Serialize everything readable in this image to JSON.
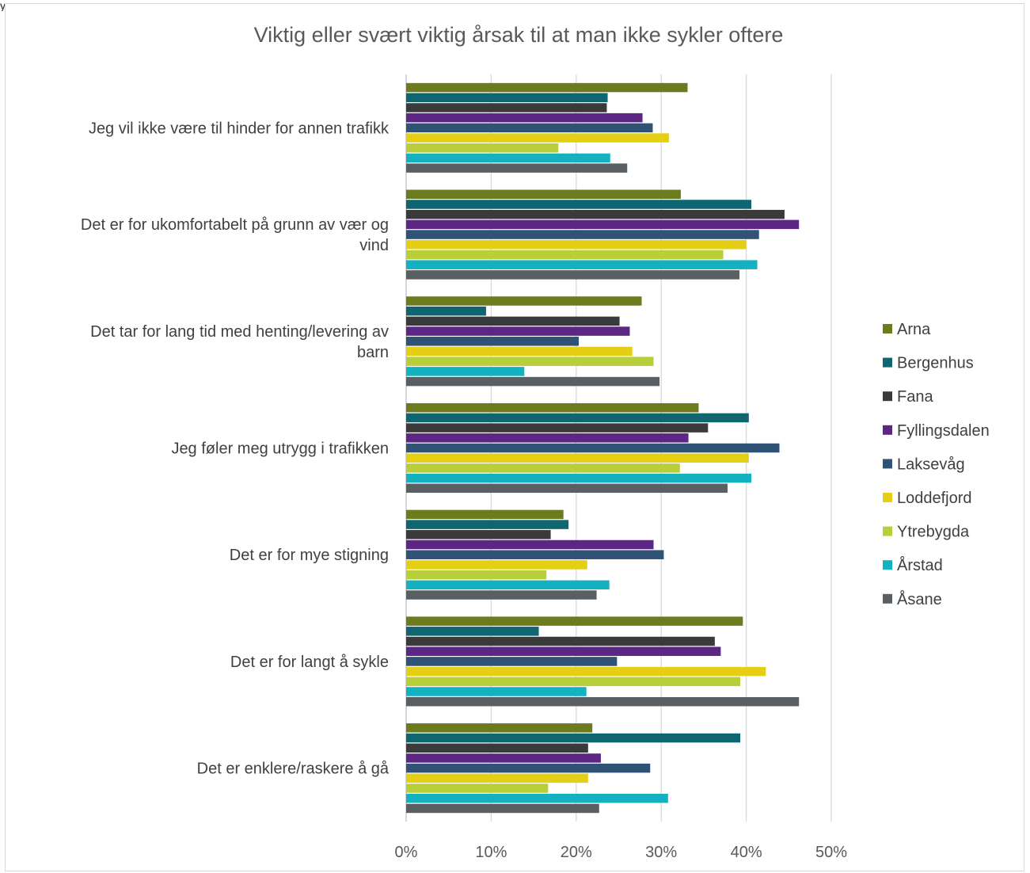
{
  "header_fragment": "y ... ... g ... g ... ... ... ... ... ... g ... y ... , y ...",
  "chart_data": {
    "type": "bar",
    "orientation": "horizontal",
    "title": "Viktig eller svært viktig årsak til at man ikke sykler oftere",
    "xlabel": "",
    "ylabel": "",
    "xlim": [
      0,
      0.5
    ],
    "x_ticks": [
      "0%",
      "10%",
      "20%",
      "30%",
      "40%",
      "50%"
    ],
    "grid": true,
    "legend_position": "right",
    "categories": [
      [
        "Jeg vil ikke være til hinder for annen trafikk"
      ],
      [
        "Det er for ukomfortabelt på grunn av vær og",
        "vind"
      ],
      [
        "Det tar for lang tid med henting/levering av",
        "barn"
      ],
      [
        "Jeg føler meg utrygg i trafikken"
      ],
      [
        "Det er for mye stigning"
      ],
      [
        "Det er for langt å sykle"
      ],
      [
        "Det er enklere/raskere å gå"
      ]
    ],
    "series": [
      {
        "name": "Arna",
        "color": "#6b7b1e",
        "values": [
          0.331,
          0.323,
          0.277,
          0.344,
          0.185,
          0.396,
          0.219
        ]
      },
      {
        "name": "Bergenhus",
        "color": "#0f6670",
        "values": [
          0.237,
          0.406,
          0.094,
          0.403,
          0.191,
          0.156,
          0.393
        ]
      },
      {
        "name": "Fana",
        "color": "#3a3a3a",
        "values": [
          0.236,
          0.445,
          0.251,
          0.355,
          0.17,
          0.363,
          0.214
        ]
      },
      {
        "name": "Fyllingsdalen",
        "color": "#5c2684",
        "values": [
          0.278,
          0.462,
          0.263,
          0.332,
          0.291,
          0.37,
          0.229
        ]
      },
      {
        "name": "Laksevåg",
        "color": "#2f5275",
        "values": [
          0.29,
          0.415,
          0.203,
          0.439,
          0.303,
          0.248,
          0.287
        ]
      },
      {
        "name": "Loddefjord",
        "color": "#e4cf14",
        "values": [
          0.309,
          0.4,
          0.266,
          0.403,
          0.213,
          0.423,
          0.214
        ]
      },
      {
        "name": "Ytrebygda",
        "color": "#b9cf3a",
        "values": [
          0.179,
          0.373,
          0.291,
          0.322,
          0.165,
          0.393,
          0.167
        ]
      },
      {
        "name": "Årstad",
        "color": "#14b1c0",
        "values": [
          0.24,
          0.413,
          0.139,
          0.406,
          0.239,
          0.212,
          0.308
        ]
      },
      {
        "name": "Åsane",
        "color": "#595f63",
        "values": [
          0.26,
          0.392,
          0.298,
          0.378,
          0.224,
          0.462,
          0.227
        ]
      }
    ]
  }
}
